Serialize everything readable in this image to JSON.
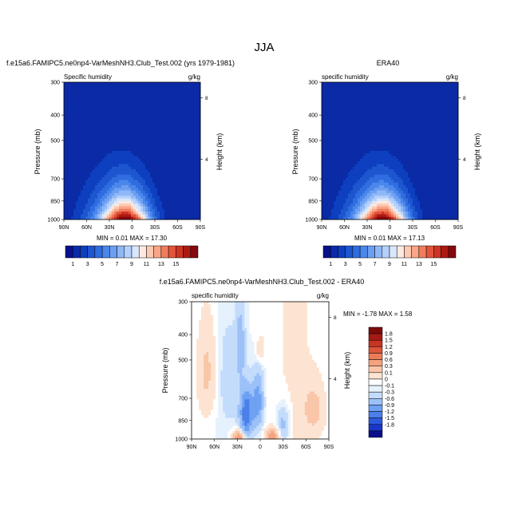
{
  "figure": {
    "season": "JJA"
  },
  "palettes": {
    "abs": [
      "#08108c",
      "#0a2aa6",
      "#0d3fbf",
      "#1d56cf",
      "#2f6de0",
      "#4b86ea",
      "#6c9ff2",
      "#8fb8f7",
      "#b4d0fb",
      "#d8e7fd",
      "#fde9df",
      "#fcc9b2",
      "#f9a586",
      "#f07c5d",
      "#e2553c",
      "#cd3423",
      "#ad1a14",
      "#85080c"
    ],
    "diff": [
      "#0b0f8c",
      "#1a36c8",
      "#2c59dd",
      "#4b7fea",
      "#6fa1f3",
      "#9cc1f8",
      "#c4dcfb",
      "#e5f1fd",
      "#ffffff",
      "#fde4d2",
      "#f9c6a9",
      "#f4a27f",
      "#ec7c57",
      "#dd553a",
      "#c73424",
      "#a51a14",
      "#7d0a0a"
    ]
  },
  "chart_data": [
    {
      "type": "heatmap",
      "title": "f.e15a6.FAMIPC5.ne0np4-VarMeshNH3.Club_Test.002 (yrs 1979-1981)",
      "left_label": "Specific humidity",
      "right_label": "g/kg",
      "ylabel": "Pressure (mb)",
      "ylabel_right": "Height (km)",
      "x_ticks": [
        "90N",
        "60N",
        "30N",
        "0",
        "30S",
        "60S",
        "90S"
      ],
      "y_ticks": [
        "300",
        "400",
        "500",
        "700",
        "850",
        "1000"
      ],
      "y_tick_values": [
        300,
        400,
        500,
        700,
        850,
        1000
      ],
      "ylim": [
        300,
        1000
      ],
      "xlim": [
        90,
        -90
      ],
      "height_ticks": [
        "8",
        "4"
      ],
      "height_tick_values": [
        8,
        4
      ],
      "stats": "MIN =  0.01  MAX = 17.30",
      "min": 0.01,
      "max": 17.3,
      "peak_lat": 8,
      "colorbar_labels": [
        "1",
        "3",
        "5",
        "7",
        "9",
        "11",
        "13",
        "15"
      ],
      "colorbar_levels": [
        0,
        1,
        2,
        3,
        4,
        5,
        6,
        7,
        8,
        9,
        10,
        11,
        12,
        13,
        14,
        15,
        16
      ]
    },
    {
      "type": "heatmap",
      "title": "ERA40",
      "left_label": "specific humidity",
      "right_label": "g/kg",
      "ylabel": "Pressure (mb)",
      "ylabel_right": "Height (km)",
      "x_ticks": [
        "90N",
        "60N",
        "30N",
        "0",
        "30S",
        "60S",
        "90S"
      ],
      "y_ticks": [
        "300",
        "400",
        "500",
        "700",
        "850",
        "1000"
      ],
      "y_tick_values": [
        300,
        400,
        500,
        700,
        850,
        1000
      ],
      "ylim": [
        300,
        1000
      ],
      "xlim": [
        90,
        -90
      ],
      "height_ticks": [
        "8",
        "4"
      ],
      "height_tick_values": [
        8,
        4
      ],
      "stats": "MIN =  0.01  MAX = 17.13",
      "min": 0.01,
      "max": 17.13,
      "peak_lat": 8,
      "colorbar_labels": [
        "1",
        "3",
        "5",
        "7",
        "9",
        "11",
        "13",
        "15"
      ],
      "colorbar_levels": [
        0,
        1,
        2,
        3,
        4,
        5,
        6,
        7,
        8,
        9,
        10,
        11,
        12,
        13,
        14,
        15,
        16
      ]
    },
    {
      "type": "heatmap",
      "title": "f.e15a6.FAMIPC5.ne0np4-VarMeshNH3.Club_Test.002 - ERA40",
      "left_label": "specific humidity",
      "right_label": "g/kg",
      "ylabel": "Pressure (mb)",
      "ylabel_right": "Height (km)",
      "x_ticks": [
        "90N",
        "60N",
        "30N",
        "0",
        "30S",
        "60S",
        "90S"
      ],
      "y_ticks": [
        "300",
        "400",
        "500",
        "700",
        "850",
        "1000"
      ],
      "y_tick_values": [
        300,
        400,
        500,
        700,
        850,
        1000
      ],
      "ylim": [
        300,
        1000
      ],
      "xlim": [
        90,
        -90
      ],
      "height_ticks": [
        "8",
        "4"
      ],
      "height_tick_values": [
        8,
        4
      ],
      "stats": "MIN = -1.78  MAX =  1.58",
      "min": -1.78,
      "max": 1.58,
      "colorbar_labels": [
        "1.8",
        "1.5",
        "1.2",
        "0.9",
        "0.6",
        "0.3",
        "0.1",
        "0",
        "-0.1",
        "-0.3",
        "-0.6",
        "-0.9",
        "-1.2",
        "-1.5",
        "-1.8"
      ],
      "colorbar_levels": [
        -1.8,
        -1.5,
        -1.2,
        -0.9,
        -0.6,
        -0.3,
        -0.1,
        0,
        0.1,
        0.3,
        0.6,
        0.9,
        1.2,
        1.5,
        1.8
      ]
    }
  ]
}
